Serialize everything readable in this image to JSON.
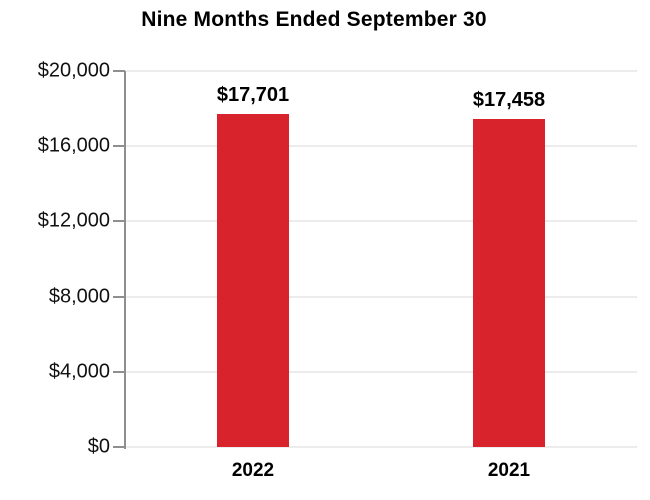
{
  "title": "Nine Months Ended September 30",
  "colors": {
    "bar": "#d8232d",
    "axis": "#8f8f8f",
    "gridline": "#ececec",
    "text": "#000000",
    "background": "#ffffff"
  },
  "chart_data": {
    "type": "bar",
    "title": "Nine Months Ended September 30",
    "categories": [
      "2022",
      "2021"
    ],
    "values": [
      17701,
      17458
    ],
    "value_labels": [
      "$17,701",
      "$17,458"
    ],
    "xlabel": "",
    "ylabel": "",
    "ylim": [
      0,
      20000
    ],
    "ytick_interval": 4000,
    "ytick_values": [
      0,
      4000,
      8000,
      12000,
      16000,
      20000
    ],
    "ytick_labels": [
      "$0",
      "$4,000",
      "$8,000",
      "$12,000",
      "$16,000",
      "$20,000"
    ],
    "grid": "horizontal",
    "legend": "none"
  }
}
